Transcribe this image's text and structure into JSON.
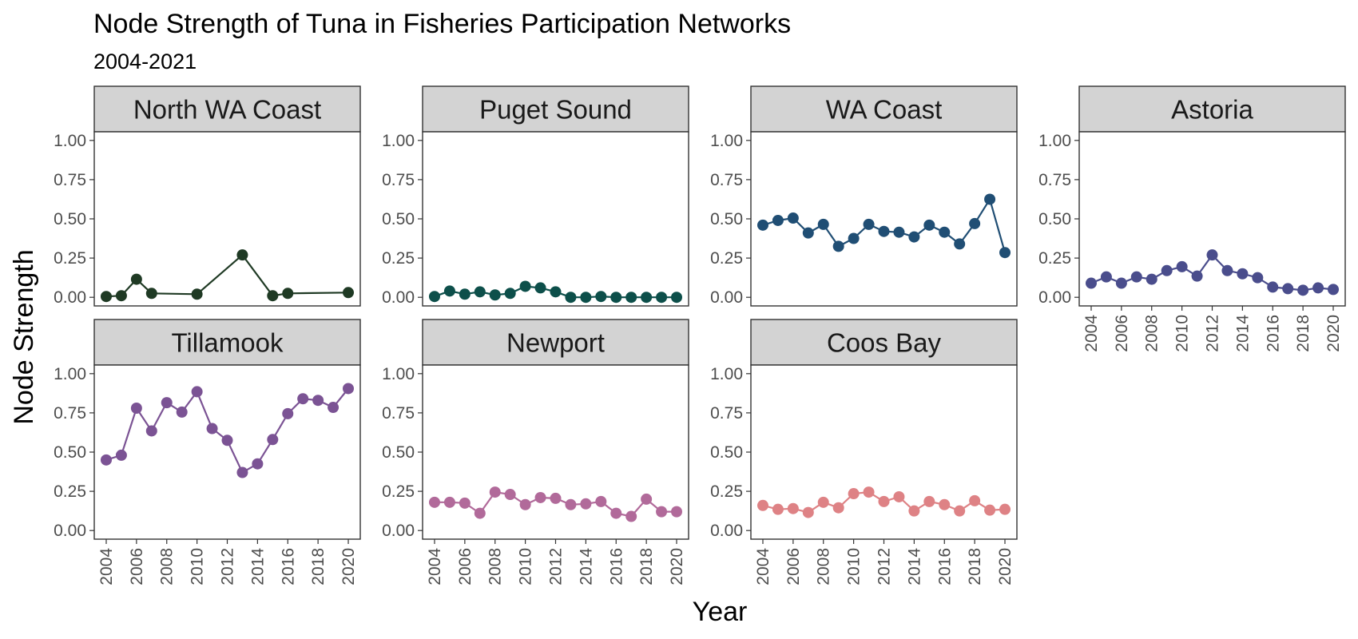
{
  "chart_data": {
    "type": "line",
    "title": "Node Strength of Tuna in Fisheries Participation Networks",
    "subtitle": "2004-2021",
    "xlabel": "Year",
    "ylabel": "Node Strength",
    "ylim": [
      0,
      1
    ],
    "y_ticks": [
      "0.00",
      "0.25",
      "0.50",
      "0.75",
      "1.00"
    ],
    "x_ticks": [
      "2004",
      "2006",
      "2008",
      "2010",
      "2012",
      "2014",
      "2016",
      "2018",
      "2020"
    ],
    "xlim": [
      2004,
      2020
    ],
    "grid": false,
    "panels": [
      {
        "name": "North WA Coast",
        "color": "#1f3a24",
        "x": [
          2004,
          2005,
          2006,
          2007,
          2010,
          2013,
          2015,
          2016,
          2020
        ],
        "y": [
          0.005,
          0.01,
          0.115,
          0.025,
          0.02,
          0.27,
          0.01,
          0.025,
          0.03
        ]
      },
      {
        "name": "Puget Sound",
        "color": "#0d4f4a",
        "x": [
          2004,
          2005,
          2006,
          2007,
          2008,
          2009,
          2010,
          2011,
          2012,
          2013,
          2014,
          2015,
          2016,
          2017,
          2018,
          2019,
          2020
        ],
        "y": [
          0.005,
          0.04,
          0.02,
          0.035,
          0.015,
          0.025,
          0.07,
          0.06,
          0.035,
          0.0,
          0.0,
          0.005,
          0.0,
          0.0,
          0.0,
          0.0,
          0.0
        ]
      },
      {
        "name": "WA Coast",
        "color": "#204e74",
        "x": [
          2004,
          2005,
          2006,
          2007,
          2008,
          2009,
          2010,
          2011,
          2012,
          2013,
          2014,
          2015,
          2016,
          2017,
          2018,
          2019,
          2020
        ],
        "y": [
          0.46,
          0.49,
          0.505,
          0.41,
          0.465,
          0.325,
          0.375,
          0.465,
          0.42,
          0.415,
          0.385,
          0.46,
          0.415,
          0.34,
          0.47,
          0.625,
          0.285
        ]
      },
      {
        "name": "Astoria",
        "color": "#4a4d8c",
        "x": [
          2004,
          2005,
          2006,
          2007,
          2008,
          2009,
          2010,
          2011,
          2012,
          2013,
          2014,
          2015,
          2016,
          2017,
          2018,
          2019,
          2020
        ],
        "y": [
          0.09,
          0.13,
          0.09,
          0.13,
          0.115,
          0.17,
          0.195,
          0.135,
          0.27,
          0.17,
          0.15,
          0.125,
          0.065,
          0.055,
          0.045,
          0.06,
          0.05
        ]
      },
      {
        "name": "Tillamook",
        "color": "#7b5394",
        "x": [
          2004,
          2005,
          2006,
          2007,
          2008,
          2009,
          2010,
          2011,
          2012,
          2013,
          2014,
          2015,
          2016,
          2017,
          2018,
          2019,
          2020
        ],
        "y": [
          0.45,
          0.48,
          0.78,
          0.635,
          0.815,
          0.755,
          0.885,
          0.65,
          0.575,
          0.37,
          0.425,
          0.58,
          0.745,
          0.84,
          0.83,
          0.785,
          0.905
        ]
      },
      {
        "name": "Newport",
        "color": "#b16a9a",
        "x": [
          2004,
          2005,
          2006,
          2007,
          2008,
          2009,
          2010,
          2011,
          2012,
          2013,
          2014,
          2015,
          2016,
          2017,
          2018,
          2019,
          2020
        ],
        "y": [
          0.18,
          0.18,
          0.175,
          0.11,
          0.245,
          0.23,
          0.165,
          0.21,
          0.205,
          0.165,
          0.17,
          0.185,
          0.11,
          0.09,
          0.2,
          0.12,
          0.12
        ]
      },
      {
        "name": "Coos Bay",
        "color": "#de8285",
        "x": [
          2004,
          2005,
          2006,
          2007,
          2008,
          2009,
          2010,
          2011,
          2012,
          2013,
          2014,
          2015,
          2016,
          2017,
          2018,
          2019,
          2020
        ],
        "y": [
          0.16,
          0.135,
          0.14,
          0.115,
          0.18,
          0.145,
          0.235,
          0.245,
          0.185,
          0.215,
          0.125,
          0.185,
          0.165,
          0.125,
          0.19,
          0.13,
          0.135
        ]
      }
    ]
  }
}
